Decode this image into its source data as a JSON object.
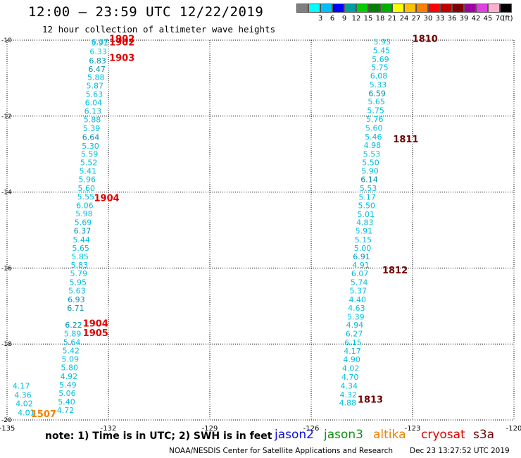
{
  "header": {
    "title": "12:00 – 23:59 UTC 12/22/2019",
    "subtitle": "12 hour collection of altimeter wave heights"
  },
  "color_scale": {
    "bins": [
      {
        "label": "",
        "color": "#7f7f7f"
      },
      {
        "label": "3",
        "color": "#00ffff"
      },
      {
        "label": "6",
        "color": "#00bfff"
      },
      {
        "label": "9",
        "color": "#0000ff"
      },
      {
        "label": "12",
        "color": "#00a0a0"
      },
      {
        "label": "15",
        "color": "#00d000"
      },
      {
        "label": "18",
        "color": "#008000"
      },
      {
        "label": "21",
        "color": "#00b000"
      },
      {
        "label": "24",
        "color": "#ffff00"
      },
      {
        "label": "27",
        "color": "#ffc000"
      },
      {
        "label": "30",
        "color": "#ff8000"
      },
      {
        "label": "33",
        "color": "#ff0000"
      },
      {
        "label": "36",
        "color": "#c00000"
      },
      {
        "label": "39",
        "color": "#800000"
      },
      {
        "label": "42",
        "color": "#a000a0"
      },
      {
        "label": "45",
        "color": "#e040e0"
      },
      {
        "label": "70",
        "color": "#ffb0d0"
      },
      {
        "label": "",
        "color": "#000000"
      }
    ],
    "unit": "(ft)"
  },
  "map": {
    "lon_ticks": [
      "-135",
      "-132",
      "-129",
      "-126",
      "-123",
      "-120"
    ],
    "lat_ticks": [
      "-10",
      "-12",
      "-14",
      "-16",
      "-18",
      "-20"
    ],
    "lon_range": [
      -135,
      -120
    ],
    "lat_range": [
      -10,
      -20
    ],
    "colors": {
      "cyan": "#00bfdf",
      "teal": "#0090b0",
      "red": "#e00000",
      "darkred": "#700000",
      "orange": "#f08000"
    },
    "left_track": [
      {
        "lat": -10.02,
        "lon": -132.25,
        "v": "6.37",
        "c": "cyan"
      },
      {
        "lat": -10.05,
        "lon": -132.26,
        "v": "5.91",
        "c": "cyan"
      },
      {
        "lat": -10.28,
        "lon": -132.3,
        "v": "6.33",
        "c": "cyan"
      },
      {
        "lat": -10.52,
        "lon": -132.32,
        "v": "6.83",
        "c": "teal"
      },
      {
        "lat": -10.74,
        "lon": -132.34,
        "v": "6.47",
        "c": "teal"
      },
      {
        "lat": -10.96,
        "lon": -132.37,
        "v": "5.88",
        "c": "cyan"
      },
      {
        "lat": -11.18,
        "lon": -132.4,
        "v": "5.87",
        "c": "cyan"
      },
      {
        "lat": -11.4,
        "lon": -132.42,
        "v": "5.63",
        "c": "cyan"
      },
      {
        "lat": -11.62,
        "lon": -132.44,
        "v": "6.04",
        "c": "cyan"
      },
      {
        "lat": -11.85,
        "lon": -132.46,
        "v": "6.13",
        "c": "cyan"
      },
      {
        "lat": -12.07,
        "lon": -132.48,
        "v": "5.88",
        "c": "cyan"
      },
      {
        "lat": -12.3,
        "lon": -132.5,
        "v": "5.39",
        "c": "cyan"
      },
      {
        "lat": -12.53,
        "lon": -132.52,
        "v": "6.64",
        "c": "teal"
      },
      {
        "lat": -12.76,
        "lon": -132.53,
        "v": "5.30",
        "c": "cyan"
      },
      {
        "lat": -12.98,
        "lon": -132.56,
        "v": "5.59",
        "c": "cyan"
      },
      {
        "lat": -13.2,
        "lon": -132.58,
        "v": "5.52",
        "c": "cyan"
      },
      {
        "lat": -13.42,
        "lon": -132.61,
        "v": "5.41",
        "c": "cyan"
      },
      {
        "lat": -13.65,
        "lon": -132.63,
        "v": "5.96",
        "c": "cyan"
      },
      {
        "lat": -13.88,
        "lon": -132.65,
        "v": "5.60",
        "c": "cyan"
      },
      {
        "lat": -14.1,
        "lon": -132.67,
        "v": "5.55",
        "c": "cyan"
      },
      {
        "lat": -14.33,
        "lon": -132.7,
        "v": "6.06",
        "c": "cyan"
      },
      {
        "lat": -14.55,
        "lon": -132.72,
        "v": "5.98",
        "c": "cyan"
      },
      {
        "lat": -14.78,
        "lon": -132.75,
        "v": "5.69",
        "c": "cyan"
      },
      {
        "lat": -15.0,
        "lon": -132.77,
        "v": "6.37",
        "c": "teal"
      },
      {
        "lat": -15.23,
        "lon": -132.8,
        "v": "5.44",
        "c": "cyan"
      },
      {
        "lat": -15.45,
        "lon": -132.82,
        "v": "5.65",
        "c": "cyan"
      },
      {
        "lat": -15.68,
        "lon": -132.84,
        "v": "5.85",
        "c": "cyan"
      },
      {
        "lat": -15.9,
        "lon": -132.86,
        "v": "5.83",
        "c": "cyan"
      },
      {
        "lat": -16.12,
        "lon": -132.88,
        "v": "5.79",
        "c": "cyan"
      },
      {
        "lat": -16.35,
        "lon": -132.9,
        "v": "5.95",
        "c": "cyan"
      },
      {
        "lat": -16.58,
        "lon": -132.93,
        "v": "5.63",
        "c": "cyan"
      },
      {
        "lat": -16.81,
        "lon": -132.95,
        "v": "6.93",
        "c": "teal"
      },
      {
        "lat": -17.03,
        "lon": -132.97,
        "v": "6.71",
        "c": "teal"
      },
      {
        "lat": -17.48,
        "lon": -133.03,
        "v": "6.22",
        "c": "teal"
      },
      {
        "lat": -17.71,
        "lon": -133.06,
        "v": "5.89",
        "c": "cyan"
      },
      {
        "lat": -17.93,
        "lon": -133.08,
        "v": "5.64",
        "c": "cyan"
      },
      {
        "lat": -18.15,
        "lon": -133.11,
        "v": "5.42",
        "c": "cyan"
      },
      {
        "lat": -18.38,
        "lon": -133.13,
        "v": "5.09",
        "c": "cyan"
      },
      {
        "lat": -18.6,
        "lon": -133.15,
        "v": "5.80",
        "c": "cyan"
      },
      {
        "lat": -18.83,
        "lon": -133.17,
        "v": "4.92",
        "c": "cyan"
      },
      {
        "lat": -19.05,
        "lon": -133.2,
        "v": "5.49",
        "c": "cyan"
      },
      {
        "lat": -19.28,
        "lon": -133.22,
        "v": "5.06",
        "c": "cyan"
      },
      {
        "lat": -19.5,
        "lon": -133.24,
        "v": "5.40",
        "c": "cyan"
      },
      {
        "lat": -19.72,
        "lon": -133.27,
        "v": "4.72",
        "c": "cyan"
      },
      {
        "lat": -19.08,
        "lon": -134.58,
        "v": "4.17",
        "c": "cyan"
      },
      {
        "lat": -19.32,
        "lon": -134.53,
        "v": "4.36",
        "c": "cyan"
      },
      {
        "lat": -19.55,
        "lon": -134.49,
        "v": "4.02",
        "c": "cyan"
      },
      {
        "lat": -19.79,
        "lon": -134.43,
        "v": "4.01",
        "c": "cyan"
      }
    ],
    "right_track": [
      {
        "lat": -10.02,
        "lon": -123.9,
        "v": "5.93",
        "c": "cyan"
      },
      {
        "lat": -10.25,
        "lon": -123.92,
        "v": "5.45",
        "c": "cyan"
      },
      {
        "lat": -10.48,
        "lon": -123.95,
        "v": "5.69",
        "c": "cyan"
      },
      {
        "lat": -10.7,
        "lon": -123.97,
        "v": "5.75",
        "c": "cyan"
      },
      {
        "lat": -10.92,
        "lon": -124.0,
        "v": "6.08",
        "c": "cyan"
      },
      {
        "lat": -11.15,
        "lon": -124.02,
        "v": "5.33",
        "c": "cyan"
      },
      {
        "lat": -11.38,
        "lon": -124.05,
        "v": "6.59",
        "c": "teal"
      },
      {
        "lat": -11.6,
        "lon": -124.07,
        "v": "5.65",
        "c": "cyan"
      },
      {
        "lat": -11.83,
        "lon": -124.09,
        "v": "5.75",
        "c": "cyan"
      },
      {
        "lat": -12.06,
        "lon": -124.12,
        "v": "5.76",
        "c": "cyan"
      },
      {
        "lat": -12.29,
        "lon": -124.14,
        "v": "5.60",
        "c": "cyan"
      },
      {
        "lat": -12.52,
        "lon": -124.16,
        "v": "5.46",
        "c": "cyan"
      },
      {
        "lat": -12.75,
        "lon": -124.19,
        "v": "4.98",
        "c": "cyan"
      },
      {
        "lat": -12.98,
        "lon": -124.21,
        "v": "5.53",
        "c": "cyan"
      },
      {
        "lat": -13.2,
        "lon": -124.24,
        "v": "5.50",
        "c": "cyan"
      },
      {
        "lat": -13.42,
        "lon": -124.26,
        "v": "5.90",
        "c": "cyan"
      },
      {
        "lat": -13.65,
        "lon": -124.28,
        "v": "6.14",
        "c": "teal"
      },
      {
        "lat": -13.88,
        "lon": -124.31,
        "v": "5.53",
        "c": "cyan"
      },
      {
        "lat": -14.11,
        "lon": -124.34,
        "v": "5.17",
        "c": "cyan"
      },
      {
        "lat": -14.33,
        "lon": -124.36,
        "v": "5.50",
        "c": "cyan"
      },
      {
        "lat": -14.56,
        "lon": -124.38,
        "v": "5.01",
        "c": "cyan"
      },
      {
        "lat": -14.78,
        "lon": -124.41,
        "v": "4.83",
        "c": "cyan"
      },
      {
        "lat": -15.0,
        "lon": -124.44,
        "v": "5.91",
        "c": "cyan"
      },
      {
        "lat": -15.23,
        "lon": -124.46,
        "v": "5.15",
        "c": "cyan"
      },
      {
        "lat": -15.45,
        "lon": -124.48,
        "v": "5.00",
        "c": "cyan"
      },
      {
        "lat": -15.68,
        "lon": -124.51,
        "v": "6.91",
        "c": "teal"
      },
      {
        "lat": -15.9,
        "lon": -124.53,
        "v": "4.91",
        "c": "cyan"
      },
      {
        "lat": -16.12,
        "lon": -124.56,
        "v": "6.07",
        "c": "cyan"
      },
      {
        "lat": -16.35,
        "lon": -124.58,
        "v": "5.74",
        "c": "cyan"
      },
      {
        "lat": -16.58,
        "lon": -124.61,
        "v": "5.37",
        "c": "cyan"
      },
      {
        "lat": -16.81,
        "lon": -124.63,
        "v": "4.40",
        "c": "cyan"
      },
      {
        "lat": -17.03,
        "lon": -124.66,
        "v": "4.63",
        "c": "cyan"
      },
      {
        "lat": -17.26,
        "lon": -124.68,
        "v": "5.39",
        "c": "cyan"
      },
      {
        "lat": -17.48,
        "lon": -124.71,
        "v": "4.94",
        "c": "cyan"
      },
      {
        "lat": -17.71,
        "lon": -124.73,
        "v": "6.27",
        "c": "cyan"
      },
      {
        "lat": -17.94,
        "lon": -124.76,
        "v": "6.15",
        "c": "cyan"
      },
      {
        "lat": -18.16,
        "lon": -124.78,
        "v": "4.17",
        "c": "cyan"
      },
      {
        "lat": -18.39,
        "lon": -124.8,
        "v": "4.90",
        "c": "cyan"
      },
      {
        "lat": -18.62,
        "lon": -124.83,
        "v": "4.02",
        "c": "cyan"
      },
      {
        "lat": -18.85,
        "lon": -124.85,
        "v": "4.70",
        "c": "cyan"
      },
      {
        "lat": -19.08,
        "lon": -124.88,
        "v": "4.34",
        "c": "cyan"
      },
      {
        "lat": -19.31,
        "lon": -124.9,
        "v": "4.32",
        "c": "cyan"
      },
      {
        "lat": -19.53,
        "lon": -124.92,
        "v": "4.88",
        "c": "cyan"
      }
    ],
    "time_labels": [
      {
        "lat": -9.95,
        "lon": -131.6,
        "t": "1902",
        "c": "red"
      },
      {
        "lat": -10.05,
        "lon": -131.6,
        "t": "1902",
        "c": "red"
      },
      {
        "lat": -10.45,
        "lon": -131.6,
        "t": "1903",
        "c": "red"
      },
      {
        "lat": -14.15,
        "lon": -132.05,
        "t": "1904",
        "c": "red"
      },
      {
        "lat": -17.45,
        "lon": -132.38,
        "t": "1904",
        "c": "red"
      },
      {
        "lat": -17.7,
        "lon": -132.38,
        "t": "1905",
        "c": "red"
      },
      {
        "lat": -19.83,
        "lon": -133.92,
        "t": "1507",
        "c": "orange"
      },
      {
        "lat": -9.95,
        "lon": -122.63,
        "t": "1810",
        "c": "darkred"
      },
      {
        "lat": -12.6,
        "lon": -123.2,
        "t": "1811",
        "c": "darkred"
      },
      {
        "lat": -16.05,
        "lon": -123.52,
        "t": "1812",
        "c": "darkred"
      },
      {
        "lat": -19.45,
        "lon": -124.25,
        "t": "1813",
        "c": "darkred"
      }
    ]
  },
  "note": "note: 1) Time is in UTC; 2) SWH is in feet",
  "legend": [
    {
      "name": "jason2",
      "color": "#1010e0"
    },
    {
      "name": "jason3",
      "color": "#109010"
    },
    {
      "name": "altika",
      "color": "#f08000"
    },
    {
      "name": "cryosat",
      "color": "#e00000"
    },
    {
      "name": "s3a",
      "color": "#700000"
    }
  ],
  "footer": {
    "credit": "NOAA/NESDIS Center for Satellite Applications and Research",
    "timestamp": "Dec 23 13:27:52 UTC 2019"
  }
}
